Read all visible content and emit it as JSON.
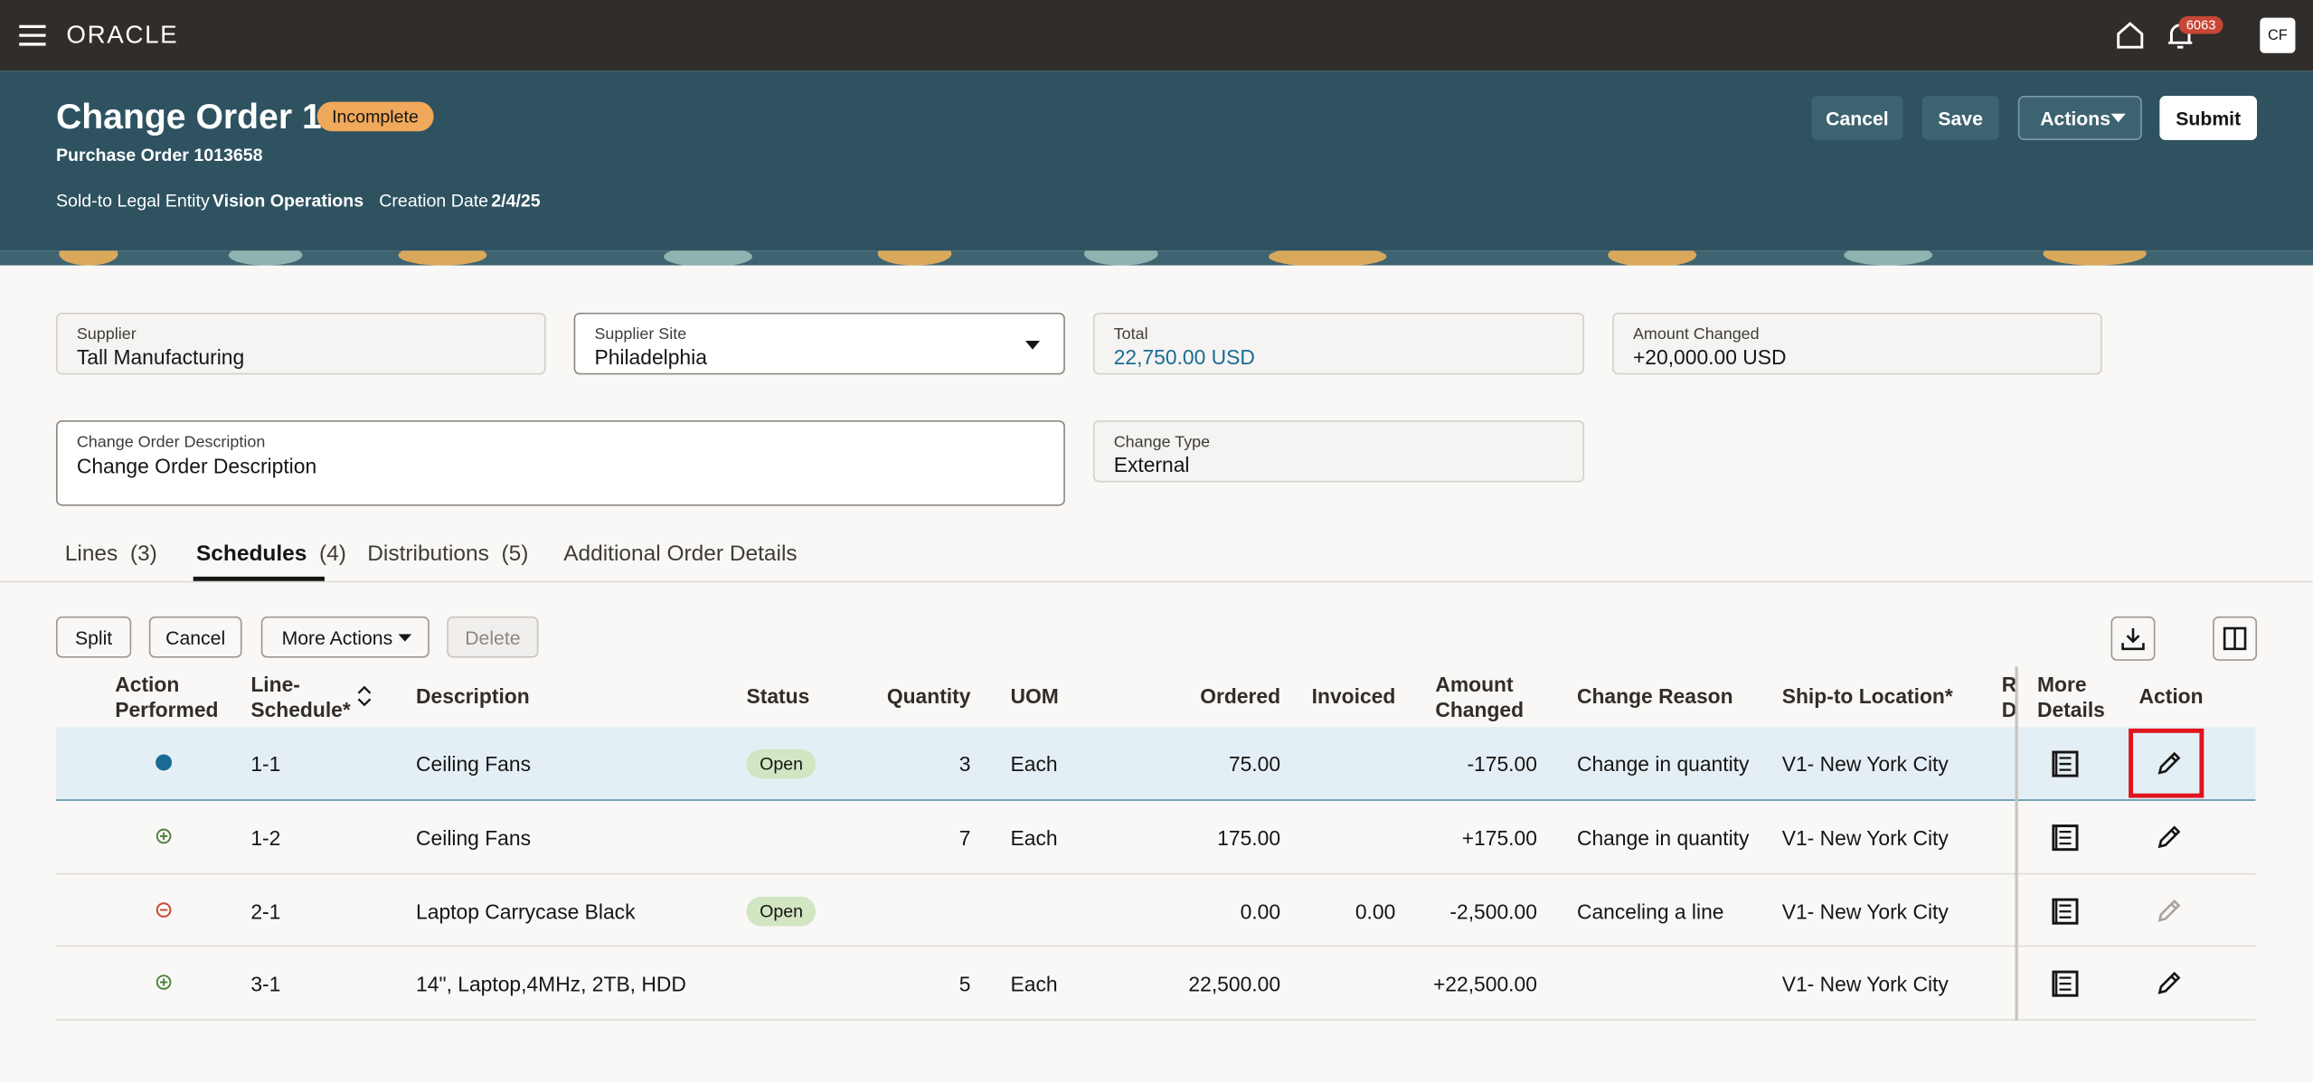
{
  "header": {
    "brand": "ORACLE",
    "notification_count": "6063",
    "user_initials": "CF"
  },
  "page": {
    "title": "Change Order 1",
    "status": "Incomplete",
    "subtitle": "Purchase Order 1013658",
    "meta": [
      {
        "label": "Sold-to Legal Entity",
        "value": "Vision Operations"
      },
      {
        "label": "Creation Date",
        "value": "2/4/25"
      }
    ],
    "buttons": [
      "Cancel",
      "Save",
      "Actions",
      "Submit"
    ]
  },
  "fields": [
    {
      "label": "Supplier",
      "value": "Tall Manufacturing"
    },
    {
      "label": "Supplier Site",
      "value": "Philadelphia"
    },
    {
      "label": "Total",
      "value": "22,750.00 USD"
    },
    {
      "label": "Amount Changed",
      "value": "+20,000.00 USD"
    },
    {
      "label": "Change Order Description",
      "value": "Change Order Description"
    },
    {
      "label": "Change Type",
      "value": "External"
    }
  ],
  "tabs": [
    {
      "label": "Lines",
      "count": "(3)"
    },
    {
      "label": "Schedules",
      "count": "(4)"
    },
    {
      "label": "Distributions",
      "count": "(5)"
    },
    {
      "label": "Additional Order Details"
    }
  ],
  "toolbar": [
    "Split",
    "Cancel",
    "More Actions",
    "Delete"
  ],
  "table": {
    "columns": {
      "action_performed": "Action Performed",
      "line": "Line-Schedule*",
      "description": "Description",
      "status": "Status",
      "quantity": "Quantity",
      "uom": "UOM",
      "ordered": "Ordered",
      "invoiced": "Invoiced",
      "amount_changed": "Amount Changed",
      "change_reason": "Change Reason",
      "ship_to": "Ship-to Location*",
      "requested": "Requested Date",
      "more_details": "More Details",
      "action": "Action"
    },
    "rows": [
      {
        "line": "1-1",
        "description": "Ceiling Fans",
        "status": "Open",
        "quantity": "3",
        "uom": "Each",
        "ordered": "75.00",
        "amount_changed": "-175.00",
        "change_reason": "Change in quantity",
        "ship_to": "V1- New York City"
      },
      {
        "line": "1-2",
        "description": "Ceiling Fans",
        "quantity": "7",
        "uom": "Each",
        "ordered": "175.00",
        "amount_changed": "+175.00",
        "change_reason": "Change in quantity",
        "ship_to": "V1- New York City"
      },
      {
        "line": "2-1",
        "description": "Laptop Carrycase Black",
        "status": "Open",
        "ordered": "0.00",
        "invoiced": "0.00",
        "amount_changed": "-2,500.00",
        "change_reason": "Canceling a line",
        "ship_to": "V1- New York City"
      },
      {
        "line": "3-1",
        "description": "14\", Laptop,4MHz, 2TB, HDD",
        "quantity": "5",
        "uom": "Each",
        "ordered": "22,500.00",
        "amount_changed": "+22,500.00",
        "ship_to": "V1- New York City"
      }
    ]
  }
}
